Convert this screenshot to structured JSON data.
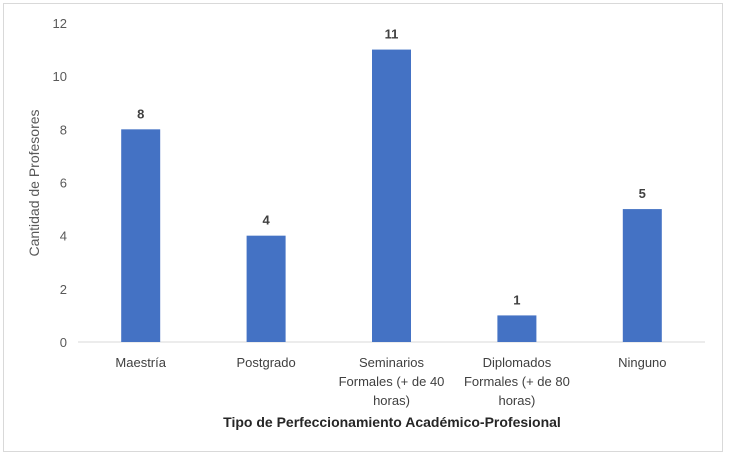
{
  "chart_data": {
    "type": "bar",
    "title": "",
    "xlabel": "Tipo de Perfeccionamiento Académico-Profesional",
    "ylabel": "Cantidad de Profesores",
    "ylim": [
      0,
      12
    ],
    "yticks": [
      0,
      2,
      4,
      6,
      8,
      10,
      12
    ],
    "grid": false,
    "categories": [
      [
        "Maestría"
      ],
      [
        "Postgrado"
      ],
      [
        "Seminarios",
        "Formales (+ de 40",
        "horas)"
      ],
      [
        "Diplomados",
        "Formales (+ de 80",
        "horas)"
      ],
      [
        "Ninguno"
      ]
    ],
    "values": [
      8,
      4,
      11,
      1,
      5
    ],
    "bar_color": "#4472c4"
  }
}
